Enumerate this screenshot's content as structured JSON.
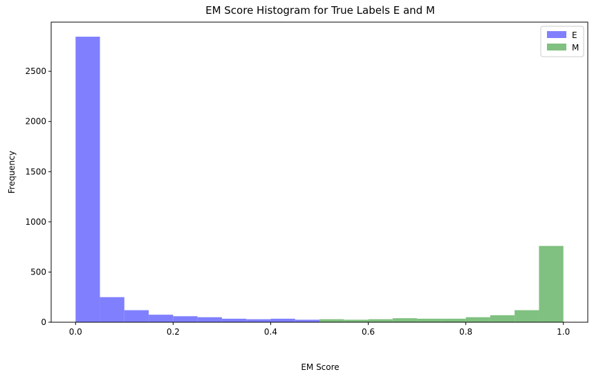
{
  "chart_data": {
    "type": "bar",
    "title": "EM Score Histogram for True Labels E and M",
    "xlabel": "EM Score",
    "ylabel": "Frequency",
    "xlim": [
      -0.05,
      1.05
    ],
    "ylim": [
      0,
      2990
    ],
    "xticks": [
      0.0,
      0.2,
      0.4,
      0.6,
      0.8,
      1.0
    ],
    "xtick_labels": [
      "0.0",
      "0.2",
      "0.4",
      "0.6",
      "0.8",
      "1.0"
    ],
    "yticks": [
      0,
      500,
      1000,
      1500,
      2000,
      2500
    ],
    "ytick_labels": [
      "0",
      "500",
      "1000",
      "1500",
      "2000",
      "2500"
    ],
    "grid": false,
    "legend_position": "top-right",
    "bin_edges": [
      0.0,
      0.05,
      0.1,
      0.15,
      0.2,
      0.25,
      0.3,
      0.35,
      0.4,
      0.45,
      0.5,
      0.55,
      0.6,
      0.65,
      0.7,
      0.75,
      0.8,
      0.85,
      0.9,
      0.95,
      1.0
    ],
    "series": [
      {
        "name": "E",
        "color": "#8080ff",
        "values": [
          2845,
          250,
          120,
          75,
          60,
          50,
          35,
          30,
          35,
          25,
          0,
          0,
          0,
          0,
          0,
          0,
          0,
          0,
          0,
          0
        ]
      },
      {
        "name": "M",
        "color": "#80c080",
        "values": [
          0,
          0,
          0,
          0,
          0,
          0,
          0,
          0,
          0,
          0,
          30,
          25,
          30,
          40,
          35,
          35,
          50,
          70,
          120,
          760
        ]
      }
    ]
  }
}
